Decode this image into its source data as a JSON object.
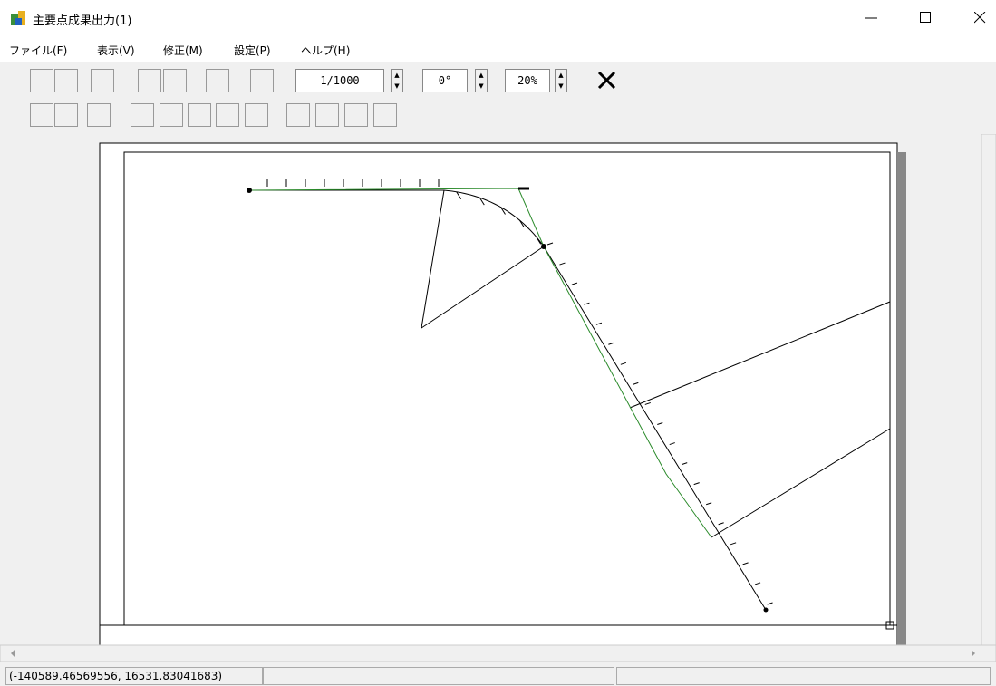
{
  "window": {
    "title": "主要点成果出力(1)"
  },
  "menu": [
    "ファイル(F)",
    "表示(V)",
    "修正(M)",
    "設定(P)",
    "ヘルプ(H)"
  ],
  "toolbar": {
    "scale": "1/1000",
    "angle": "0°",
    "zoom": "20%"
  },
  "status_bar": {
    "coordinates": "(-140589.46569556, 16531.83041683)"
  }
}
